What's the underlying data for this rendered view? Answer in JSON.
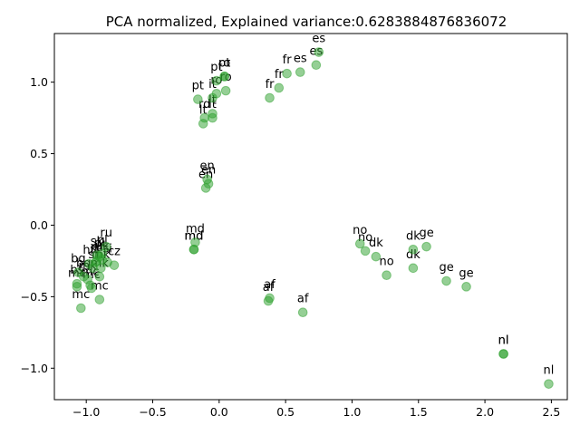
{
  "chart_data": {
    "type": "scatter",
    "title": "PCA normalized, Explained variance:0.6283884876836072",
    "xlabel": "",
    "ylabel": "",
    "xlim": [
      -1.24,
      2.62
    ],
    "ylim": [
      -1.22,
      1.34
    ],
    "xticks": [
      -1.0,
      -0.5,
      0.0,
      0.5,
      1.0,
      1.5,
      2.0,
      2.5
    ],
    "xtick_labels": [
      "−1.0",
      "−0.5",
      "0.0",
      "0.5",
      "1.0",
      "1.5",
      "2.0",
      "2.5"
    ],
    "yticks": [
      -1.0,
      -0.5,
      0.0,
      0.5,
      1.0
    ],
    "ytick_labels": [
      "−1.0",
      "−0.5",
      "0.0",
      "0.5",
      "1.0"
    ],
    "grid": false,
    "marker_color": "#2ca02c",
    "marker_alpha": 0.5,
    "points": [
      {
        "label": "es",
        "x": 0.75,
        "y": 1.21
      },
      {
        "label": "es",
        "x": 0.73,
        "y": 1.12
      },
      {
        "label": "es",
        "x": 0.61,
        "y": 1.07
      },
      {
        "label": "fr",
        "x": 0.51,
        "y": 1.06
      },
      {
        "label": "fr",
        "x": 0.45,
        "y": 0.96
      },
      {
        "label": "fr",
        "x": 0.38,
        "y": 0.89
      },
      {
        "label": "pt",
        "x": 0.04,
        "y": 1.04
      },
      {
        "label": "pt",
        "x": -0.02,
        "y": 1.01
      },
      {
        "label": "ro",
        "x": 0.04,
        "y": 1.04
      },
      {
        "label": "ro",
        "x": -0.02,
        "y": 0.92
      },
      {
        "label": "ro",
        "x": 0.05,
        "y": 0.94
      },
      {
        "label": "pt",
        "x": -0.16,
        "y": 0.88
      },
      {
        "label": "it",
        "x": -0.05,
        "y": 0.89
      },
      {
        "label": "rd",
        "x": -0.11,
        "y": 0.75
      },
      {
        "label": "lt",
        "x": -0.05,
        "y": 0.78
      },
      {
        "label": "it",
        "x": -0.05,
        "y": 0.75
      },
      {
        "label": "lt",
        "x": -0.12,
        "y": 0.71
      },
      {
        "label": "en",
        "x": -0.09,
        "y": 0.32
      },
      {
        "label": "en",
        "x": -0.08,
        "y": 0.29
      },
      {
        "label": "en",
        "x": -0.1,
        "y": 0.26
      },
      {
        "label": "md",
        "x": -0.18,
        "y": -0.12
      },
      {
        "label": "md",
        "x": -0.19,
        "y": -0.17
      },
      {
        "label": "md",
        "x": -0.19,
        "y": -0.17
      },
      {
        "label": "no",
        "x": 1.06,
        "y": -0.13
      },
      {
        "label": "no",
        "x": 1.1,
        "y": -0.18
      },
      {
        "label": "dk",
        "x": 1.18,
        "y": -0.22
      },
      {
        "label": "no",
        "x": 1.26,
        "y": -0.35
      },
      {
        "label": "dk",
        "x": 1.46,
        "y": -0.17
      },
      {
        "label": "ge",
        "x": 1.56,
        "y": -0.15
      },
      {
        "label": "dk",
        "x": 1.46,
        "y": -0.3
      },
      {
        "label": "ge",
        "x": 1.71,
        "y": -0.39
      },
      {
        "label": "ge",
        "x": 1.86,
        "y": -0.43
      },
      {
        "label": "af",
        "x": 0.38,
        "y": -0.51
      },
      {
        "label": "af",
        "x": 0.37,
        "y": -0.53
      },
      {
        "label": "af",
        "x": 0.63,
        "y": -0.61
      },
      {
        "label": "nl",
        "x": 2.14,
        "y": -0.9
      },
      {
        "label": "nl",
        "x": 2.14,
        "y": -0.9
      },
      {
        "label": "nl",
        "x": 2.48,
        "y": -1.11
      },
      {
        "label": "ru",
        "x": -0.85,
        "y": -0.15
      },
      {
        "label": "pl",
        "x": -0.88,
        "y": -0.2
      },
      {
        "label": "sk",
        "x": -0.92,
        "y": -0.21
      },
      {
        "label": "pl",
        "x": -0.9,
        "y": -0.22
      },
      {
        "label": "uk",
        "x": -0.88,
        "y": -0.24
      },
      {
        "label": "cz",
        "x": -0.79,
        "y": -0.28
      },
      {
        "label": "hr",
        "x": -0.98,
        "y": -0.27
      },
      {
        "label": "sr",
        "x": -0.93,
        "y": -0.26
      },
      {
        "label": "sl",
        "x": -0.95,
        "y": -0.3
      },
      {
        "label": "si",
        "x": -0.84,
        "y": -0.26
      },
      {
        "label": "ru",
        "x": -0.92,
        "y": -0.25
      },
      {
        "label": "bg",
        "x": -1.06,
        "y": -0.33
      },
      {
        "label": "bg",
        "x": -1.02,
        "y": -0.36
      },
      {
        "label": "mk",
        "x": -0.99,
        "y": -0.38
      },
      {
        "label": "mk",
        "x": -0.9,
        "y": -0.36
      },
      {
        "label": "mc",
        "x": -0.97,
        "y": -0.42
      },
      {
        "label": "bs",
        "x": -1.07,
        "y": -0.41
      },
      {
        "label": "mc",
        "x": -0.96,
        "y": -0.44
      },
      {
        "label": "mk",
        "x": -0.89,
        "y": -0.3
      },
      {
        "label": "mc",
        "x": -1.07,
        "y": -0.43
      },
      {
        "label": "mc",
        "x": -0.9,
        "y": -0.52
      },
      {
        "label": "mc",
        "x": -1.04,
        "y": -0.58
      }
    ]
  }
}
